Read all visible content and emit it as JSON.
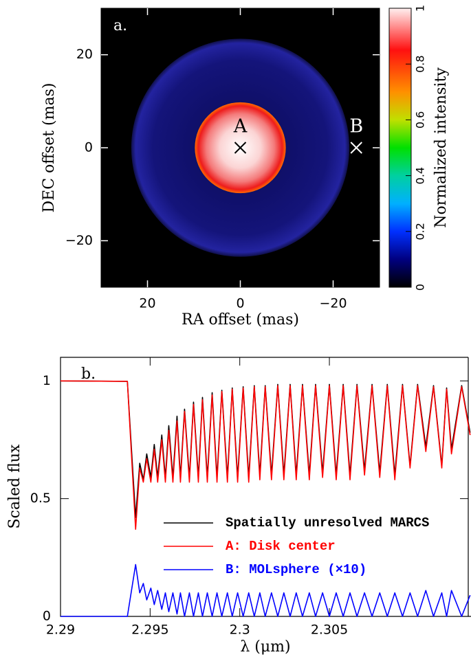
{
  "chart_data": [
    {
      "type": "image",
      "panel_label": "a.",
      "xlabel": "RA offset (mas)",
      "ylabel": "DEC offset (mas)",
      "xlim": [
        30,
        -30
      ],
      "ylim": [
        -30,
        30
      ],
      "xticks": [
        20,
        0,
        {
          "value": -20,
          "label": "−20"
        }
      ],
      "yticks": [
        {
          "value": -20,
          "label": "−20"
        },
        0,
        20
      ],
      "markers": [
        {
          "label": "A",
          "x": 0,
          "y": 0,
          "color": "#000000"
        },
        {
          "label": "B",
          "x": -25,
          "y": 0,
          "color": "#ffffff"
        }
      ],
      "colorbar": {
        "label": "Normalized intensity",
        "lim": [
          0,
          1
        ],
        "ticks": [
          0,
          0.2,
          0.4,
          0.6,
          0.8,
          1
        ]
      }
    },
    {
      "type": "line",
      "panel_label": "b.",
      "xlabel": "λ (μm)",
      "ylabel": "Scaled flux",
      "xlim": [
        2.29,
        2.3129
      ],
      "ylim": [
        0,
        1.1
      ],
      "xticks": [
        2.29,
        2.295,
        2.3,
        2.305
      ],
      "yticks": [
        0,
        0.5,
        1
      ],
      "x": [
        2.29,
        2.29373,
        2.29419,
        2.29442,
        2.29462,
        2.29481,
        2.29504,
        2.29523,
        2.29542,
        2.29565,
        2.29585,
        2.29604,
        2.29627,
        2.2965,
        2.29669,
        2.29692,
        2.29719,
        2.29742,
        2.29769,
        2.29792,
        2.29819,
        2.29846,
        2.29873,
        2.299,
        2.29931,
        2.29958,
        2.29988,
        2.30019,
        2.3005,
        2.30081,
        2.30112,
        2.30142,
        2.30177,
        2.30212,
        2.30246,
        2.30281,
        2.30315,
        2.3035,
        2.30388,
        2.30423,
        2.30462,
        2.305,
        2.30538,
        2.30577,
        2.30615,
        2.30654,
        2.30696,
        2.30738,
        2.30781,
        2.30823,
        2.30865,
        2.30908,
        2.3095,
        2.30992,
        2.31038,
        2.31081,
        2.31127,
        2.31154,
        2.31181,
        2.31238,
        2.31285
      ],
      "series": [
        {
          "name": "Spatially unresolved MARCS",
          "color": "#000000",
          "values": [
            1.0,
            0.998,
            0.42,
            0.65,
            0.58,
            0.69,
            0.59,
            0.73,
            0.59,
            0.77,
            0.59,
            0.81,
            0.59,
            0.85,
            0.59,
            0.88,
            0.59,
            0.91,
            0.59,
            0.93,
            0.59,
            0.95,
            0.59,
            0.96,
            0.59,
            0.97,
            0.59,
            0.975,
            0.59,
            0.98,
            0.6,
            0.98,
            0.6,
            0.985,
            0.6,
            0.985,
            0.6,
            0.985,
            0.6,
            0.985,
            0.61,
            0.985,
            0.6,
            0.985,
            0.6,
            0.985,
            0.62,
            0.985,
            0.61,
            0.985,
            0.6,
            0.985,
            0.64,
            0.985,
            0.72,
            0.98,
            0.64,
            0.97,
            0.71,
            0.98,
            0.78
          ]
        },
        {
          "name": "A: Disk center",
          "color": "#ff0000",
          "values": [
            1.0,
            0.998,
            0.37,
            0.63,
            0.57,
            0.67,
            0.57,
            0.71,
            0.57,
            0.75,
            0.57,
            0.79,
            0.57,
            0.83,
            0.57,
            0.87,
            0.57,
            0.9,
            0.57,
            0.92,
            0.57,
            0.94,
            0.57,
            0.955,
            0.57,
            0.965,
            0.57,
            0.97,
            0.57,
            0.975,
            0.58,
            0.975,
            0.58,
            0.98,
            0.58,
            0.98,
            0.58,
            0.98,
            0.58,
            0.98,
            0.59,
            0.98,
            0.58,
            0.98,
            0.58,
            0.98,
            0.6,
            0.98,
            0.59,
            0.98,
            0.58,
            0.98,
            0.63,
            0.98,
            0.7,
            0.975,
            0.63,
            0.965,
            0.69,
            0.975,
            0.77
          ]
        },
        {
          "name": "B: MOLsphere (×10)",
          "color": "#0000ff",
          "values": [
            0,
            0,
            0.22,
            0.1,
            0.14,
            0.07,
            0.12,
            0.05,
            0.11,
            0.03,
            0.1,
            0.02,
            0.1,
            0.01,
            0.1,
            0,
            0.1,
            0,
            0.1,
            0,
            0.1,
            0,
            0.1,
            0,
            0.1,
            0,
            0.1,
            0,
            0.1,
            0,
            0.1,
            0,
            0.1,
            0,
            0.1,
            0,
            0.1,
            0,
            0.1,
            0,
            0.1,
            0,
            0.1,
            0,
            0.1,
            0,
            0.1,
            0,
            0.1,
            0,
            0.1,
            0,
            0.1,
            0,
            0.11,
            0,
            0.1,
            0,
            0.11,
            0,
            0.09
          ]
        }
      ]
    }
  ]
}
